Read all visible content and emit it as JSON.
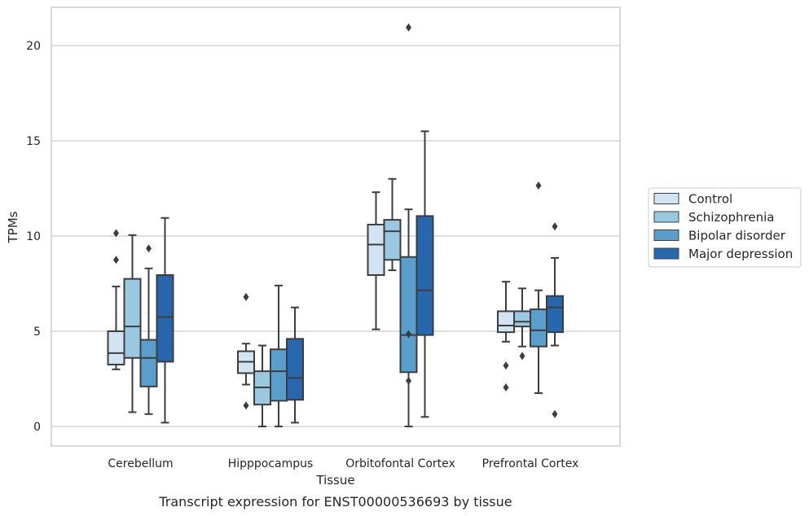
{
  "caption": "Transcript expression for ENST00000536693 by tissue",
  "chart_data": {
    "type": "box",
    "xlabel": "Tissue",
    "ylabel": "TPMs",
    "ylim": [
      -1,
      22
    ],
    "yticks": [
      0,
      5,
      10,
      15,
      20
    ],
    "grid": "horizontal",
    "legend_position": "right",
    "categories": [
      "Cerebellum",
      "Hipppocampus",
      "Orbitofontal Cortex",
      "Prefrontal Cortex"
    ],
    "series": [
      {
        "name": "Control",
        "color": "#d2e3f3",
        "boxes": [
          {
            "whisker_low": 3.0,
            "q1": 3.25,
            "median": 3.85,
            "q3": 5.0,
            "whisker_high": 7.35,
            "outliers": [
              8.75,
              10.15
            ]
          },
          {
            "whisker_low": 2.2,
            "q1": 2.8,
            "median": 3.4,
            "q3": 3.95,
            "whisker_high": 4.35,
            "outliers": [
              1.1,
              6.8
            ]
          },
          {
            "whisker_low": 5.1,
            "q1": 7.95,
            "median": 9.55,
            "q3": 10.6,
            "whisker_high": 12.3,
            "outliers": []
          },
          {
            "whisker_low": 4.45,
            "q1": 4.95,
            "median": 5.3,
            "q3": 6.05,
            "whisker_high": 7.6,
            "outliers": [
              2.05,
              3.2
            ]
          }
        ]
      },
      {
        "name": "Schizophrenia",
        "color": "#9ac8e0",
        "boxes": [
          {
            "whisker_low": 0.75,
            "q1": 3.6,
            "median": 5.25,
            "q3": 7.75,
            "whisker_high": 10.05,
            "outliers": []
          },
          {
            "whisker_low": 0.0,
            "q1": 1.15,
            "median": 2.05,
            "q3": 2.9,
            "whisker_high": 4.25,
            "outliers": []
          },
          {
            "whisker_low": 8.2,
            "q1": 8.75,
            "median": 10.25,
            "q3": 10.85,
            "whisker_high": 13.0,
            "outliers": []
          },
          {
            "whisker_low": 4.2,
            "q1": 5.25,
            "median": 5.5,
            "q3": 6.05,
            "whisker_high": 7.25,
            "outliers": [
              3.7
            ]
          }
        ]
      },
      {
        "name": "Bipolar disorder",
        "color": "#5a9fcb",
        "boxes": [
          {
            "whisker_low": 0.65,
            "q1": 2.1,
            "median": 3.6,
            "q3": 4.55,
            "whisker_high": 8.3,
            "outliers": [
              9.35
            ]
          },
          {
            "whisker_low": 0.0,
            "q1": 1.35,
            "median": 2.9,
            "q3": 4.05,
            "whisker_high": 7.4,
            "outliers": []
          },
          {
            "whisker_low": 0.0,
            "q1": 2.85,
            "median": 4.8,
            "q3": 8.9,
            "whisker_high": 11.4,
            "outliers": [
              2.4,
              4.85,
              20.95
            ]
          },
          {
            "whisker_low": 1.75,
            "q1": 4.2,
            "median": 5.05,
            "q3": 6.15,
            "whisker_high": 7.15,
            "outliers": [
              12.65
            ]
          }
        ]
      },
      {
        "name": "Major depression",
        "color": "#2767ae",
        "boxes": [
          {
            "whisker_low": 0.2,
            "q1": 3.4,
            "median": 5.75,
            "q3": 7.95,
            "whisker_high": 10.95,
            "outliers": []
          },
          {
            "whisker_low": 0.2,
            "q1": 1.4,
            "median": 2.55,
            "q3": 4.6,
            "whisker_high": 6.25,
            "outliers": []
          },
          {
            "whisker_low": 0.5,
            "q1": 4.8,
            "median": 7.15,
            "q3": 11.05,
            "whisker_high": 15.5,
            "outliers": []
          },
          {
            "whisker_low": 4.25,
            "q1": 4.95,
            "median": 6.25,
            "q3": 6.85,
            "whisker_high": 8.85,
            "outliers": [
              0.65,
              10.5
            ]
          }
        ]
      }
    ]
  }
}
